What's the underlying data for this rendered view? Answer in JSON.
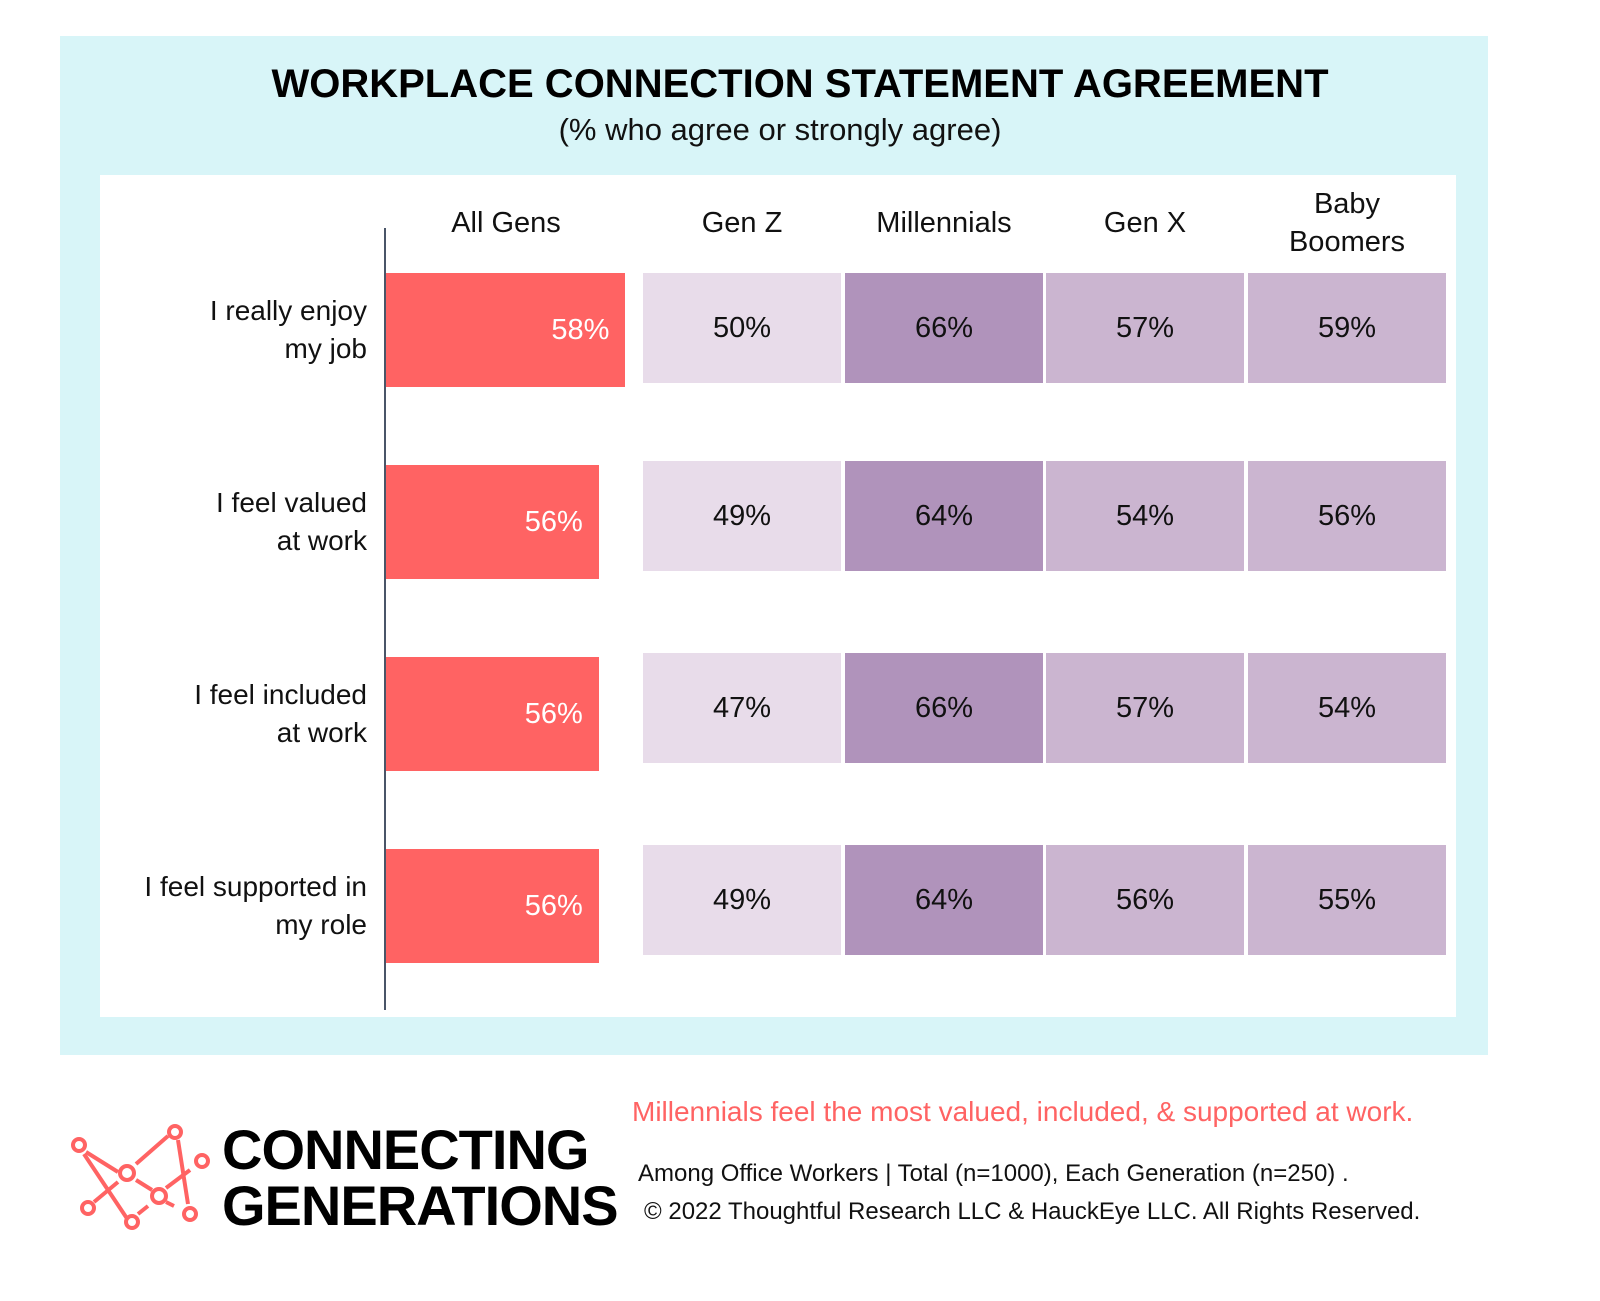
{
  "chart_data": {
    "type": "bar",
    "title": "WORKPLACE CONNECTION STATEMENT AGREEMENT",
    "subtitle": "(% who agree or strongly agree)",
    "xlim": [
      40,
      100
    ],
    "categories": [
      "I really enjoy my job",
      "I feel valued at work",
      "I feel included at work",
      "I feel supported in my role"
    ],
    "category_lines": [
      [
        "I really enjoy",
        "my job"
      ],
      [
        "I feel valued",
        "at work"
      ],
      [
        "I feel included",
        "at work"
      ],
      [
        "I feel supported in",
        "my role"
      ]
    ],
    "bar_series": {
      "name": "All Gens",
      "values": [
        58,
        56,
        56,
        56
      ],
      "labels": [
        "58%",
        "56%",
        "56%",
        "56%"
      ],
      "color": "#ff6363"
    },
    "heatmap_series": [
      {
        "name": "Gen Z",
        "values": [
          50,
          49,
          47,
          49
        ],
        "labels": [
          "50%",
          "49%",
          "47%",
          "49%"
        ]
      },
      {
        "name": "Millennials",
        "values": [
          66,
          64,
          66,
          64
        ],
        "labels": [
          "66%",
          "64%",
          "66%",
          "64%"
        ]
      },
      {
        "name": "Gen X",
        "values": [
          57,
          54,
          57,
          56
        ],
        "labels": [
          "57%",
          "54%",
          "57%",
          "56%"
        ]
      },
      {
        "name_lines": [
          "Baby",
          "Boomers"
        ],
        "name": "Baby Boomers",
        "values": [
          59,
          56,
          54,
          55
        ],
        "labels": [
          "59%",
          "56%",
          "54%",
          "55%"
        ]
      }
    ],
    "heat_colors": {
      "low": "#e8dcea",
      "mid": "#cbb5d0",
      "high": "#b093bb"
    }
  },
  "footer": {
    "takeaway": "Millennials feel the most valued, included, & supported at work.",
    "note": "Among Office Workers | Total (n=1000), Each Generation (n=250) .",
    "copyright": "© 2022 Thoughtful Research LLC & HauckEye LLC. All Rights Reserved.",
    "logo_line1": "CONNECTING",
    "logo_line2": "GENERATIONS"
  },
  "colors": {
    "panel": "#d8f5f8",
    "accent": "#ff6363"
  }
}
